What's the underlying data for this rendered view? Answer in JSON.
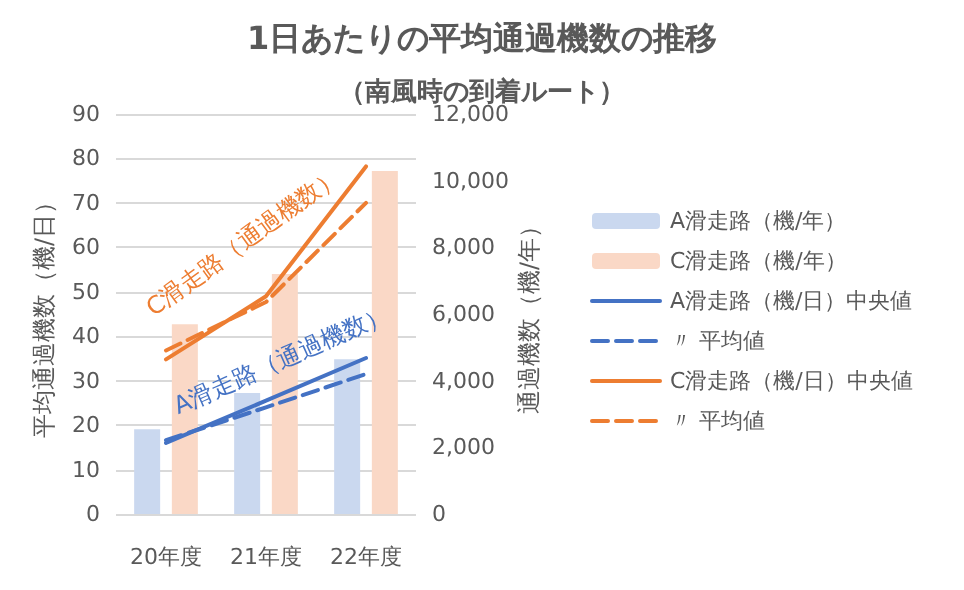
{
  "chart_data": {
    "type": "bar",
    "title": "1日あたりの平均通過機数の推移",
    "subtitle": "（南風時の到着ルート）",
    "ylabel": "平均通過機数（機/日）",
    "y2label": "通過機数（機/年）",
    "categories": [
      "20年度",
      "21年度",
      "22年度"
    ],
    "series": [
      {
        "name": "A滑走路（機/年）",
        "type": "bar",
        "axis": "y2",
        "color": "#cad8ef",
        "values": [
          2540,
          3630,
          4640
        ]
      },
      {
        "name": "C滑走路（機/年）",
        "type": "bar",
        "axis": "y2",
        "color": "#fad8c6",
        "values": [
          5690,
          7200,
          10290
        ]
      },
      {
        "name": "A滑走路（機/日）中央値",
        "type": "line",
        "color": "#4472c4",
        "line_style": "solid",
        "values": [
          16.0,
          25.5,
          35.1
        ]
      },
      {
        "name": "〃 平均値",
        "type": "line",
        "color": "#4472c4",
        "line_style": "dashed",
        "values": [
          16.6,
          24.0,
          31.5
        ]
      },
      {
        "name": "C滑走路（機/日）中央値",
        "type": "line",
        "color": "#ed7d31",
        "line_style": "solid",
        "values": [
          34.8,
          49.0,
          78.2
        ]
      },
      {
        "name": "〃 平均値",
        "type": "line",
        "color": "#ed7d31",
        "line_style": "dashed",
        "values": [
          36.8,
          47.7,
          70.0
        ]
      }
    ],
    "annotations": [
      "C滑走路（通過機数）",
      "A滑走路（通過機数）"
    ],
    "ylim": [
      0,
      90
    ],
    "yticks": [
      0,
      10,
      20,
      30,
      40,
      50,
      60,
      70,
      80,
      90
    ],
    "y2lim": [
      0,
      12000
    ],
    "y2ticks": [
      0,
      {
        "value": 2000,
        "label": "2,000"
      },
      {
        "value": 4000,
        "label": "4,000"
      },
      {
        "value": 6000,
        "label": "6,000"
      },
      {
        "value": 8000,
        "label": "8,000"
      },
      {
        "value": 10000,
        "label": "10,000"
      },
      {
        "value": 12000,
        "label": "12,000"
      }
    ],
    "grid": "y",
    "legend": "right",
    "marker": "none"
  }
}
